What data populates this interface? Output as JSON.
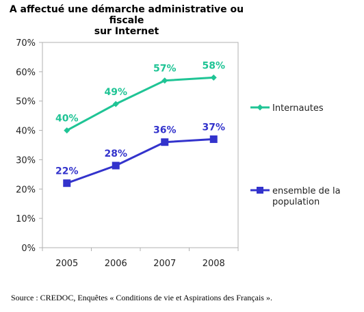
{
  "chart_data": {
    "type": "line",
    "title": "A affectué une démarche administrative ou fiscale sur Internet",
    "title_lines": [
      "A affectué une démarche administrative ou fiscale",
      "sur Internet"
    ],
    "categories": [
      "2005",
      "2006",
      "2007",
      "2008"
    ],
    "ylim": [
      0,
      70
    ],
    "yticks": [
      0,
      10,
      20,
      30,
      40,
      50,
      60,
      70
    ],
    "ytick_labels": [
      "0%",
      "10%",
      "20%",
      "30%",
      "40%",
      "50%",
      "60%",
      "70%"
    ],
    "grid": false,
    "legend_position": "right",
    "series": [
      {
        "name": "Internautes",
        "legend_lines": [
          "Internautes"
        ],
        "values": [
          40,
          49,
          57,
          58
        ],
        "labels": [
          "40%",
          "49%",
          "57%",
          "58%"
        ],
        "color": "#1fc495",
        "marker": "diamond"
      },
      {
        "name": "ensemble de la population",
        "legend_lines": [
          "ensemble de la",
          "population"
        ],
        "values": [
          22,
          28,
          36,
          37
        ],
        "labels": [
          "22%",
          "28%",
          "36%",
          "37%"
        ],
        "color": "#3333cc",
        "marker": "square"
      }
    ]
  },
  "source": "Source : CREDOC, Enquêtes « Conditions de vie et Aspirations des Français »."
}
